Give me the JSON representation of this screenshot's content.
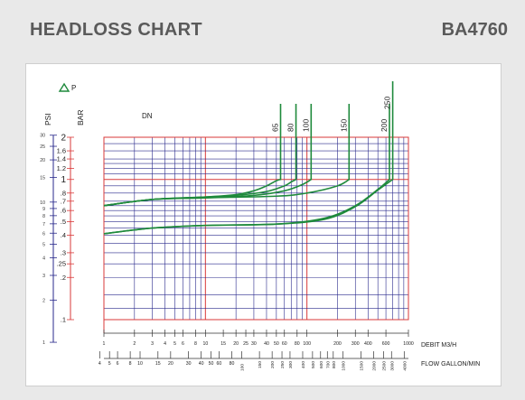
{
  "header": {
    "title": "HEADLOSS CHART",
    "code": "BA4760"
  },
  "chart_data": {
    "type": "line",
    "title": "",
    "delta_label": "P",
    "left_axes": {
      "psi_label": "PSI",
      "bar_label": "BAR",
      "psi_ticks": [
        "30",
        "25",
        "20",
        "15",
        "10",
        "9",
        "8",
        "7",
        "6",
        "5",
        "4",
        "3",
        "2",
        "1"
      ],
      "psi_values": [
        30,
        25,
        20,
        15,
        10,
        9,
        8,
        7,
        6,
        5,
        4,
        3,
        2,
        1
      ],
      "bar_ticks": [
        "2",
        "1.6",
        "1.4",
        "1.2",
        "1",
        ".8",
        ".7",
        ".6",
        ".5",
        ".4",
        ".3",
        ".25",
        ".2",
        ".1"
      ],
      "bar_values": [
        2,
        1.6,
        1.4,
        1.2,
        1,
        0.8,
        0.7,
        0.6,
        0.5,
        0.4,
        0.3,
        0.25,
        0.2,
        0.1
      ],
      "ylim_bar": [
        0.1,
        2
      ],
      "scale": "log"
    },
    "bottom_axes": {
      "debit_label": "DEBIT  M3/H",
      "flow_label": "FLOW GALLON/MIN",
      "xlim_m3h": [
        1,
        1000
      ],
      "scale": "log",
      "debit_ticks": [
        "1",
        "2",
        "3",
        "4",
        "5",
        "6",
        "8",
        "10",
        "15",
        "20",
        "25",
        "30",
        "40",
        "50",
        "60",
        "80",
        "100",
        "200",
        "300",
        "400",
        "600",
        "1000"
      ],
      "debit_values": [
        1,
        2,
        3,
        4,
        5,
        6,
        8,
        10,
        15,
        20,
        25,
        30,
        40,
        50,
        60,
        80,
        100,
        200,
        300,
        400,
        600,
        1000
      ],
      "flow_ticks_h": [
        "4",
        "5",
        "6",
        "8",
        "10",
        "15",
        "20",
        "30",
        "40",
        "50",
        "60",
        "80",
        "100"
      ],
      "flow_values_h": [
        4,
        5,
        6,
        8,
        10,
        15,
        20,
        30,
        40,
        50,
        60,
        80,
        100
      ],
      "flow_ticks_v": [
        "150",
        "200",
        "250",
        "300",
        "400",
        "500",
        "600",
        "700",
        "800",
        "1000",
        "1500",
        "2000",
        "2500",
        "3000",
        "4000"
      ],
      "flow_values_v": [
        150,
        200,
        250,
        300,
        400,
        500,
        600,
        700,
        800,
        1000,
        1500,
        2000,
        2500,
        3000,
        4000
      ]
    },
    "dn_label": "DN",
    "series": [
      {
        "name": "65",
        "x": [
          1,
          3,
          10,
          20,
          30,
          40,
          50,
          55
        ],
        "y": [
          0.65,
          0.72,
          0.75,
          0.78,
          0.83,
          0.9,
          0.98,
          1.0
        ]
      },
      {
        "name": "80",
        "x": [
          1,
          3,
          10,
          20,
          40,
          60,
          70,
          78
        ],
        "y": [
          0.65,
          0.72,
          0.75,
          0.77,
          0.82,
          0.9,
          0.96,
          1.0
        ]
      },
      {
        "name": "100",
        "x": [
          1,
          3,
          10,
          30,
          60,
          90,
          110
        ],
        "y": [
          0.65,
          0.72,
          0.74,
          0.77,
          0.83,
          0.92,
          1.0
        ]
      },
      {
        "name": "150",
        "x": [
          1,
          3,
          10,
          50,
          100,
          200,
          260
        ],
        "y": [
          0.65,
          0.72,
          0.74,
          0.76,
          0.8,
          0.9,
          1.0
        ]
      },
      {
        "name": "200",
        "x": [
          1,
          3,
          10,
          50,
          150,
          300,
          500,
          650
        ],
        "y": [
          0.41,
          0.45,
          0.47,
          0.48,
          0.53,
          0.65,
          0.85,
          1.0
        ]
      },
      {
        "name": "250",
        "x": [
          1,
          3,
          10,
          50,
          150,
          300,
          500,
          700
        ],
        "y": [
          0.41,
          0.45,
          0.47,
          0.48,
          0.52,
          0.64,
          0.84,
          1.0
        ]
      }
    ],
    "colors": {
      "grid_red": "#d93a3a",
      "grid_blue": "#2a2a8c",
      "line": "#1f8a3c",
      "header_text": "#5a5a5a"
    }
  }
}
